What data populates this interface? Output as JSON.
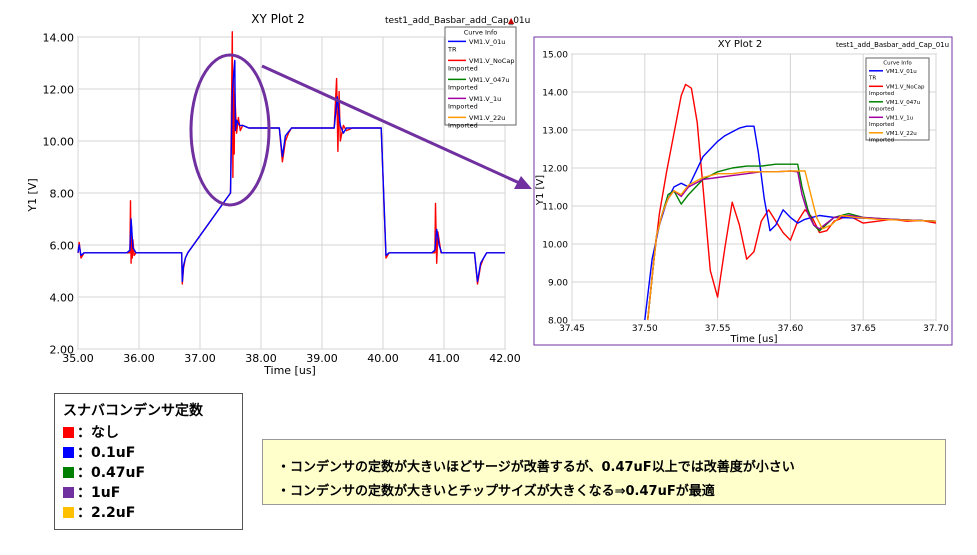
{
  "chart_data": [
    {
      "type": "line",
      "title": "XY Plot 2",
      "subtitle": "test1_add_Basbar_add_Cap_01u",
      "xlabel": "Time [us]",
      "ylabel": "Y1 [V]",
      "xlim": [
        35.0,
        42.0
      ],
      "ylim": [
        2.0,
        14.0
      ],
      "xticks": [
        "35.00",
        "36.00",
        "37.00",
        "38.00",
        "39.00",
        "40.00",
        "41.00",
        "42.00"
      ],
      "yticks": [
        "2.00",
        "4.00",
        "6.00",
        "8.00",
        "10.00",
        "12.00",
        "14.00"
      ],
      "grid": true,
      "legend": {
        "title": "Curve Info",
        "entries": [
          {
            "label": "VM1.V_01u",
            "sub": "TR",
            "color": "#0000ff"
          },
          {
            "label": "VM1.V_NoCap",
            "sub": "Imported",
            "color": "#ff0000"
          },
          {
            "label": "VM1.V_047u",
            "sub": "Imported",
            "color": "#008000"
          },
          {
            "label": "VM1.V_1u",
            "sub": "Imported",
            "color": "#a000a0"
          },
          {
            "label": "VM1.V_22u",
            "sub": "Imported",
            "color": "#ff9900"
          }
        ]
      },
      "series": [
        {
          "name": "VM1.V_NoCap",
          "color": "#ff0000",
          "x": [
            35.0,
            35.02,
            35.05,
            35.1,
            35.8,
            35.85,
            35.86,
            35.87,
            35.88,
            35.89,
            35.9,
            35.92,
            35.95,
            36.0,
            36.7,
            36.71,
            36.73,
            36.76,
            36.8,
            37.5,
            37.52,
            37.53,
            37.54,
            37.55,
            37.56,
            37.57,
            37.6,
            37.63,
            37.66,
            37.7,
            37.8,
            38.0,
            38.3,
            38.35,
            38.4,
            38.45,
            38.5,
            38.6,
            38.7,
            39.0,
            39.2,
            39.24,
            39.26,
            39.28,
            39.3,
            39.35,
            39.4,
            39.5,
            39.9,
            39.97,
            40.05,
            40.1,
            40.2,
            40.8,
            40.85,
            40.86,
            40.88,
            40.9,
            40.95,
            41.0,
            41.5,
            41.55,
            41.6,
            41.65,
            41.7,
            42.0
          ],
          "y": [
            5.7,
            6.1,
            5.5,
            5.7,
            5.7,
            5.7,
            7.7,
            5.3,
            6.7,
            5.5,
            6.2,
            5.6,
            5.7,
            5.7,
            5.7,
            4.5,
            5.1,
            5.5,
            5.7,
            8.0,
            12.0,
            14.2,
            8.6,
            12.7,
            9.5,
            11.8,
            10.3,
            10.9,
            10.4,
            10.6,
            10.5,
            10.5,
            10.5,
            9.2,
            10.0,
            10.3,
            10.5,
            10.5,
            10.5,
            10.5,
            10.5,
            12.4,
            9.6,
            11.9,
            10.0,
            10.6,
            10.4,
            10.5,
            10.5,
            10.5,
            5.5,
            5.7,
            5.7,
            5.7,
            5.7,
            7.6,
            5.3,
            6.5,
            5.7,
            5.7,
            5.7,
            4.5,
            5.2,
            5.5,
            5.7,
            5.7
          ]
        },
        {
          "name": "VM1.V_01u",
          "color": "#0000ff",
          "x": [
            35.0,
            35.02,
            35.05,
            35.1,
            35.8,
            35.85,
            35.87,
            35.9,
            35.95,
            36.0,
            36.7,
            36.71,
            36.73,
            36.76,
            36.8,
            37.5,
            37.53,
            37.57,
            37.58,
            37.6,
            37.65,
            37.7,
            37.8,
            38.0,
            38.3,
            38.35,
            38.4,
            38.5,
            38.6,
            39.0,
            39.2,
            39.25,
            39.3,
            39.35,
            39.4,
            39.5,
            39.9,
            39.97,
            40.05,
            40.1,
            40.2,
            40.8,
            40.85,
            40.88,
            40.92,
            40.96,
            41.0,
            41.5,
            41.55,
            41.6,
            41.65,
            41.7,
            42.0
          ],
          "y": [
            5.7,
            6.0,
            5.6,
            5.7,
            5.7,
            5.8,
            7.0,
            5.9,
            5.7,
            5.7,
            5.7,
            4.6,
            5.2,
            5.5,
            5.7,
            8.0,
            11.9,
            13.1,
            10.4,
            10.8,
            10.6,
            10.6,
            10.5,
            10.5,
            10.5,
            9.4,
            10.2,
            10.5,
            10.5,
            10.5,
            10.5,
            11.7,
            10.6,
            10.3,
            10.5,
            10.5,
            10.5,
            10.5,
            5.6,
            5.7,
            5.7,
            5.7,
            5.8,
            6.6,
            6.0,
            5.7,
            5.7,
            5.7,
            4.6,
            5.3,
            5.5,
            5.7,
            5.7
          ]
        }
      ]
    },
    {
      "type": "line",
      "title": "XY Plot 2",
      "subtitle": "test1_add_Basbar_add_Cap_01u",
      "xlabel": "Time [us]",
      "ylabel": "Y1 [V]",
      "xlim": [
        37.45,
        37.7
      ],
      "ylim": [
        8.0,
        15.0
      ],
      "xticks": [
        "37.45",
        "37.50",
        "37.55",
        "37.60",
        "37.65",
        "37.70"
      ],
      "yticks": [
        "8.00",
        "9.00",
        "10.00",
        "11.00",
        "12.00",
        "13.00",
        "14.00",
        "15.00"
      ],
      "grid": true,
      "legend": {
        "title": "Curve Info",
        "entries": [
          {
            "label": "VM1.V_01u",
            "sub": "TR",
            "color": "#0000ff"
          },
          {
            "label": "VM1.V_NoCap",
            "sub": "Imported",
            "color": "#ff0000"
          },
          {
            "label": "VM1.V_047u",
            "sub": "Imported",
            "color": "#008000"
          },
          {
            "label": "VM1.V_1u",
            "sub": "Imported",
            "color": "#a000a0"
          },
          {
            "label": "VM1.V_22u",
            "sub": "Imported",
            "color": "#ff9900"
          }
        ]
      },
      "series": [
        {
          "name": "VM1.V_NoCap",
          "color": "#ff0000",
          "x": [
            37.502,
            37.506,
            37.51,
            37.515,
            37.52,
            37.525,
            37.528,
            37.532,
            37.536,
            37.54,
            37.545,
            37.55,
            37.555,
            37.56,
            37.565,
            37.57,
            37.575,
            37.58,
            37.585,
            37.59,
            37.595,
            37.6,
            37.605,
            37.61,
            37.615,
            37.62,
            37.625,
            37.63,
            37.64,
            37.65,
            37.66,
            37.67,
            37.68,
            37.69,
            37.7
          ],
          "y": [
            8.0,
            9.5,
            10.8,
            11.9,
            12.9,
            13.9,
            14.2,
            14.1,
            13.2,
            11.5,
            9.3,
            8.6,
            9.9,
            11.1,
            10.5,
            9.6,
            9.8,
            10.6,
            10.9,
            10.6,
            10.3,
            10.1,
            10.6,
            10.9,
            10.7,
            10.3,
            10.35,
            10.6,
            10.75,
            10.55,
            10.6,
            10.65,
            10.6,
            10.62,
            10.55
          ]
        },
        {
          "name": "VM1.V_01u",
          "color": "#0000ff",
          "x": [
            37.5,
            37.505,
            37.51,
            37.515,
            37.52,
            37.525,
            37.53,
            37.535,
            37.54,
            37.545,
            37.55,
            37.555,
            37.56,
            37.565,
            37.57,
            37.575,
            37.578,
            37.582,
            37.586,
            37.59,
            37.595,
            37.6,
            37.605,
            37.61,
            37.62,
            37.63,
            37.65,
            37.67,
            37.7
          ],
          "y": [
            8.0,
            9.6,
            10.5,
            11.1,
            11.5,
            11.6,
            11.5,
            11.9,
            12.3,
            12.5,
            12.7,
            12.85,
            12.95,
            13.05,
            13.1,
            13.1,
            12.4,
            11.2,
            10.35,
            10.5,
            10.9,
            10.7,
            10.55,
            10.65,
            10.75,
            10.7,
            10.68,
            10.65,
            10.6
          ]
        },
        {
          "name": "VM1.V_047u",
          "color": "#008000",
          "x": [
            37.502,
            37.508,
            37.512,
            37.516,
            37.52,
            37.525,
            37.53,
            37.54,
            37.55,
            37.56,
            37.57,
            37.58,
            37.59,
            37.6,
            37.605,
            37.608,
            37.612,
            37.616,
            37.62,
            37.63,
            37.64,
            37.65,
            37.67,
            37.7
          ],
          "y": [
            8.0,
            10.2,
            10.8,
            11.3,
            11.4,
            11.05,
            11.3,
            11.7,
            11.9,
            12.0,
            12.05,
            12.05,
            12.1,
            12.1,
            12.1,
            11.5,
            10.9,
            10.5,
            10.35,
            10.7,
            10.8,
            10.7,
            10.65,
            10.6
          ]
        },
        {
          "name": "VM1.V_1u",
          "color": "#a000a0",
          "x": [
            37.502,
            37.508,
            37.512,
            37.516,
            37.52,
            37.525,
            37.53,
            37.54,
            37.55,
            37.56,
            37.57,
            37.58,
            37.59,
            37.6,
            37.605,
            37.608,
            37.612,
            37.616,
            37.62,
            37.63,
            37.64,
            37.65,
            37.67,
            37.7
          ],
          "y": [
            8.0,
            10.2,
            10.8,
            11.2,
            11.4,
            11.25,
            11.5,
            11.7,
            11.75,
            11.8,
            11.85,
            11.9,
            11.9,
            11.92,
            11.9,
            11.3,
            10.8,
            10.5,
            10.4,
            10.7,
            10.75,
            10.7,
            10.65,
            10.6
          ]
        },
        {
          "name": "VM1.V_22u",
          "color": "#ff9900",
          "x": [
            37.502,
            37.508,
            37.512,
            37.516,
            37.52,
            37.525,
            37.53,
            37.54,
            37.55,
            37.56,
            37.57,
            37.58,
            37.59,
            37.6,
            37.605,
            37.61,
            37.614,
            37.618,
            37.622,
            37.628,
            37.635,
            37.645,
            37.66,
            37.7
          ],
          "y": [
            8.0,
            10.2,
            10.8,
            11.2,
            11.4,
            11.3,
            11.55,
            11.75,
            11.85,
            11.85,
            11.9,
            11.9,
            11.9,
            11.92,
            11.92,
            11.92,
            11.3,
            10.7,
            10.4,
            10.5,
            10.75,
            10.7,
            10.65,
            10.6
          ]
        }
      ]
    }
  ],
  "legend_box": {
    "title": "スナバコンデンサ定数",
    "items": [
      {
        "label": "：なし",
        "color": "#ff0000"
      },
      {
        "label": "：0.1uF",
        "color": "#0000ff"
      },
      {
        "label": "：0.47uF",
        "color": "#008000"
      },
      {
        "label": "：1uF",
        "color": "#7030a0"
      },
      {
        "label": "：2.2uF",
        "color": "#ffc000"
      }
    ]
  },
  "notes": [
    "・コンデンサの定数が大きいほどサージが改善するが、0.47uF以上では改善度が小さい",
    "・コンデンサの定数が大きいとチップサイズが大きくなる⇒0.47uFが最適"
  ],
  "colors": {
    "highlight": "#7030a0",
    "note_bg": "#ffffcc",
    "plot_bg": "#ffffff",
    "grid": "#d0d0d0"
  }
}
